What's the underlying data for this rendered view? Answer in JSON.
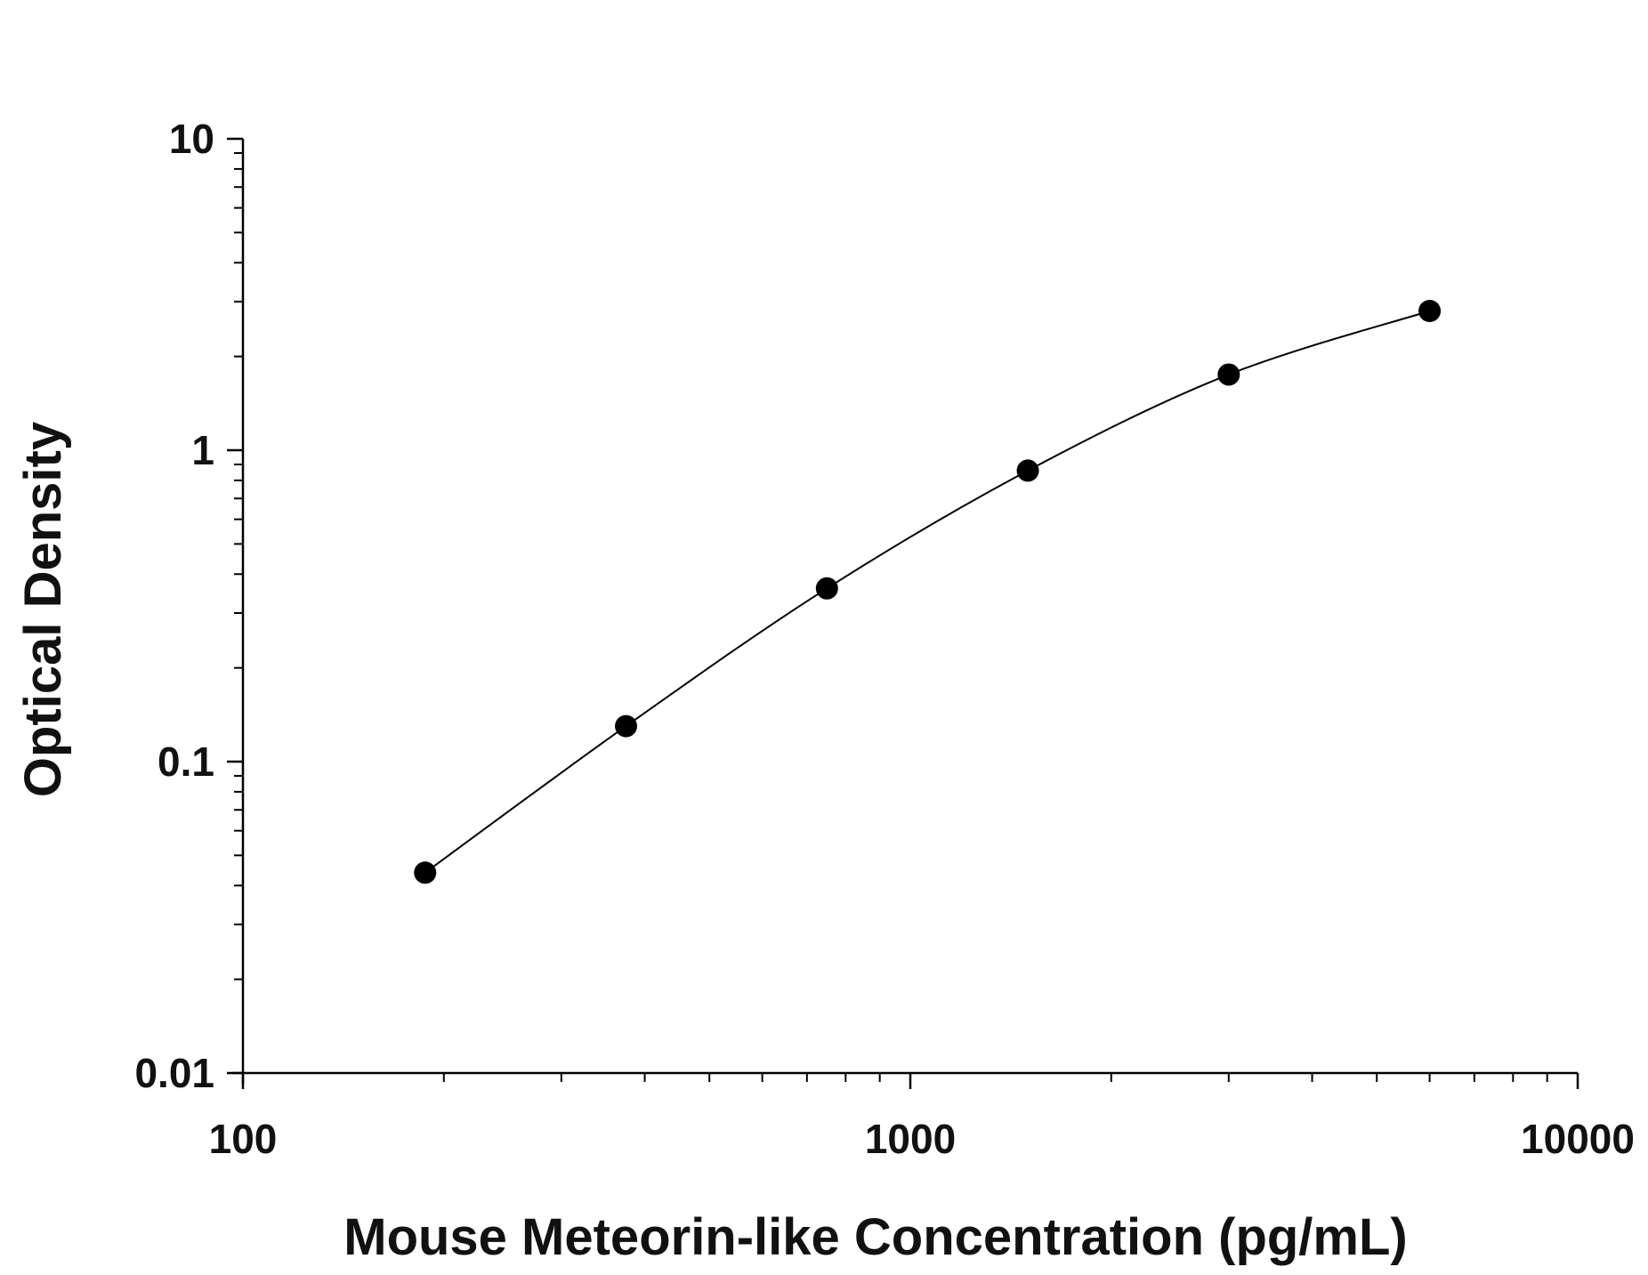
{
  "chart_data": {
    "type": "scatter",
    "title": "",
    "xlabel": "Mouse Meteorin-like Concentration (pg/mL)",
    "ylabel": "Optical Density",
    "x_scale": "log",
    "y_scale": "log",
    "xlim": [
      100,
      10000
    ],
    "ylim": [
      0.01,
      10
    ],
    "x_ticks": [
      100,
      1000,
      10000
    ],
    "x_tick_labels": [
      "100",
      "1000",
      "10000"
    ],
    "y_ticks": [
      0.01,
      0.1,
      1,
      10
    ],
    "y_tick_labels": [
      "0.01",
      "0.1",
      "1",
      "10"
    ],
    "grid": false,
    "legend": "none",
    "series": [
      {
        "x": [
          187.5,
          375,
          750,
          1500,
          3000,
          6000
        ],
        "y": [
          0.044,
          0.13,
          0.36,
          0.86,
          1.75,
          2.8
        ],
        "marker": "filled-circle",
        "fit_curve": true
      }
    ],
    "colors": {
      "marker": "#000000",
      "line": "#000000",
      "axis": "#000000"
    }
  }
}
